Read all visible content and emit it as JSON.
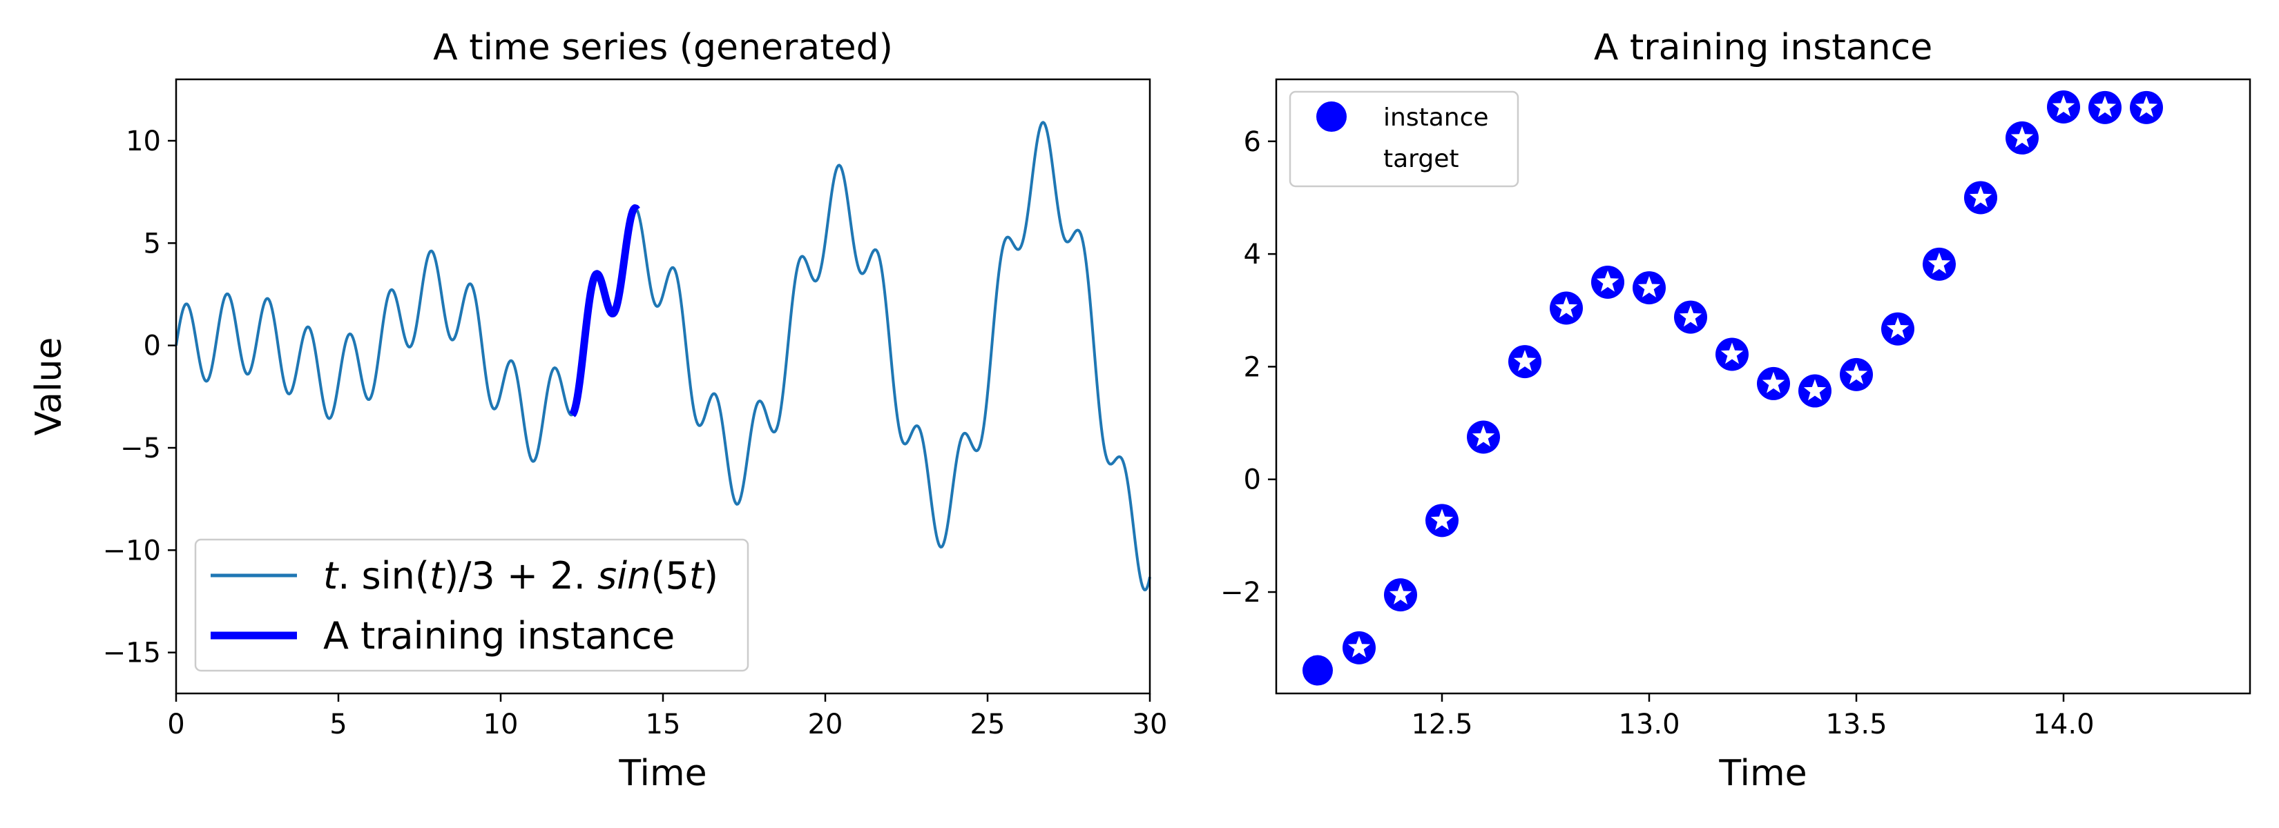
{
  "chart_data": [
    {
      "type": "line",
      "title": "A time series (generated)",
      "xlabel": "Time",
      "ylabel": "Value",
      "xlim": [
        0,
        30
      ],
      "ylim": [
        -17,
        13
      ],
      "xticks": [
        0,
        5,
        10,
        15,
        20,
        25,
        30
      ],
      "xtick_labels": [
        "0",
        "5",
        "10",
        "15",
        "20",
        "25",
        "30"
      ],
      "yticks": [
        10,
        5,
        0,
        -5,
        -10,
        -15
      ],
      "ytick_labels": [
        "10",
        "5",
        "0",
        "−5",
        "−10",
        "−15"
      ],
      "grid": false,
      "legend_position": "lower-left",
      "function": "t*sin(t)/3 + 2*sin(5t)",
      "samples": 301,
      "series": [
        {
          "name": "$t.\\sin(t)/3 + 2.sin(5t)$",
          "legend_text": "t.sin(t)/3 + 2.sin(5t)",
          "t_range": [
            0,
            30
          ],
          "color": "#1f77b4"
        },
        {
          "name": "A training instance",
          "legend_text": "A training instance",
          "t_range": [
            12.2,
            14.2
          ],
          "color": "#0000ff"
        }
      ]
    },
    {
      "type": "scatter",
      "title": "A training instance",
      "xlabel": "Time",
      "ylabel": "",
      "xlim": [
        12.1,
        14.45
      ],
      "ylim": [
        -3.8,
        7.1
      ],
      "xticks": [
        12.5,
        13.0,
        13.5,
        14.0
      ],
      "xtick_labels": [
        "12.5",
        "13.0",
        "13.5",
        "14.0"
      ],
      "yticks": [
        6,
        4,
        2,
        0,
        -2
      ],
      "ytick_labels": [
        "6",
        "4",
        "2",
        "0",
        "−2"
      ],
      "grid": false,
      "legend_position": "top-left",
      "series": [
        {
          "name": "instance",
          "marker": "circle",
          "color": "#0000ff",
          "x": [
            12.2,
            12.3,
            12.4,
            12.5,
            12.6,
            12.7,
            12.8,
            12.9,
            13.0,
            13.1,
            13.2,
            13.3,
            13.4,
            13.5,
            13.6,
            13.7,
            13.8,
            13.9,
            14.0,
            14.1
          ],
          "y": [
            -3.39,
            -2.99,
            -2.05,
            -0.73,
            0.75,
            2.09,
            3.04,
            3.5,
            3.4,
            2.88,
            2.22,
            1.7,
            1.57,
            1.86,
            2.67,
            3.82,
            5.0,
            6.06,
            6.61,
            6.6
          ]
        },
        {
          "name": "target",
          "marker": "star",
          "color": "#ffffff",
          "x": [
            12.3,
            12.4,
            12.5,
            12.6,
            12.7,
            12.8,
            12.9,
            13.0,
            13.1,
            13.2,
            13.3,
            13.4,
            13.5,
            13.6,
            13.7,
            13.8,
            13.9,
            14.0,
            14.1,
            14.2
          ],
          "y": [
            -2.99,
            -2.05,
            -0.73,
            0.75,
            2.09,
            3.04,
            3.5,
            3.4,
            2.88,
            2.22,
            1.7,
            1.57,
            1.86,
            2.67,
            3.82,
            5.0,
            6.06,
            6.61,
            6.6,
            6.6
          ]
        }
      ]
    }
  ]
}
